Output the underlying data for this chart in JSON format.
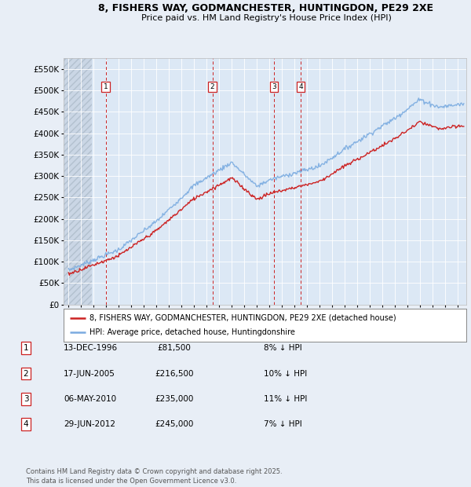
{
  "title_line1": "8, FISHERS WAY, GODMANCHESTER, HUNTINGDON, PE29 2XE",
  "title_line2": "Price paid vs. HM Land Registry's House Price Index (HPI)",
  "ylim": [
    0,
    575000
  ],
  "yticks": [
    0,
    50000,
    100000,
    150000,
    200000,
    250000,
    300000,
    350000,
    400000,
    450000,
    500000,
    550000
  ],
  "ytick_labels": [
    "£0",
    "£50K",
    "£100K",
    "£150K",
    "£200K",
    "£250K",
    "£300K",
    "£350K",
    "£400K",
    "£450K",
    "£500K",
    "£550K"
  ],
  "xlim_start": 1993.6,
  "xlim_end": 2025.7,
  "hpi_color": "#7aabe0",
  "price_color": "#cc2222",
  "sale_dates": [
    1996.95,
    2005.46,
    2010.35,
    2012.5
  ],
  "sale_prices": [
    81500,
    216500,
    235000,
    245000
  ],
  "sale_labels": [
    "1",
    "2",
    "3",
    "4"
  ],
  "transaction_rows": [
    [
      "1",
      "13-DEC-1996",
      "£81,500",
      "8% ↓ HPI"
    ],
    [
      "2",
      "17-JUN-2005",
      "£216,500",
      "10% ↓ HPI"
    ],
    [
      "3",
      "06-MAY-2010",
      "£235,000",
      "11% ↓ HPI"
    ],
    [
      "4",
      "29-JUN-2012",
      "£245,000",
      "7% ↓ HPI"
    ]
  ],
  "legend_line1": "8, FISHERS WAY, GODMANCHESTER, HUNTINGDON, PE29 2XE (detached house)",
  "legend_line2": "HPI: Average price, detached house, Huntingdonshire",
  "footer": "Contains HM Land Registry data © Crown copyright and database right 2025.\nThis data is licensed under the Open Government Licence v3.0.",
  "background_color": "#e8eef6",
  "plot_bg_color": "#dce8f5",
  "grid_color": "#ffffff"
}
